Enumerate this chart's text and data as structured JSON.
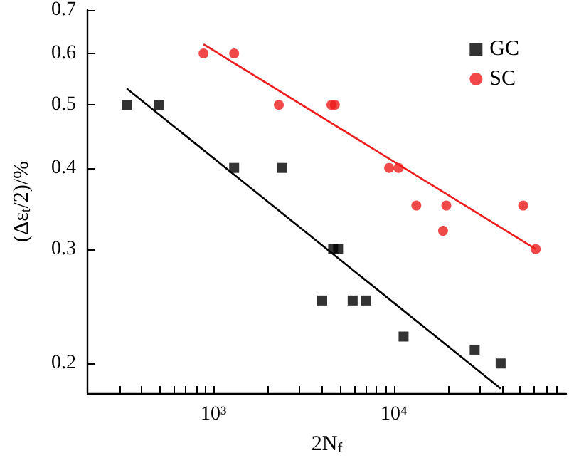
{
  "chart_data": {
    "type": "scatter",
    "xlabel": "2N$_{f}$",
    "ylabel": "(Δε$_{t}$/2)/%",
    "log": "xy",
    "grid": false,
    "legend": "top right",
    "xlim": [
      200,
      90000
    ],
    "ylim": [
      0.18,
      0.7
    ],
    "xticks": [
      {
        "value": 300,
        "label": null
      },
      {
        "value": 400,
        "label": null
      },
      {
        "value": 500,
        "label": null
      },
      {
        "value": 600,
        "label": null
      },
      {
        "value": 700,
        "label": null
      },
      {
        "value": 800,
        "label": null
      },
      {
        "value": 900,
        "label": null
      },
      {
        "value": 1000,
        "label": "10³"
      },
      {
        "value": 2000,
        "label": null
      },
      {
        "value": 3000,
        "label": null
      },
      {
        "value": 4000,
        "label": null
      },
      {
        "value": 5000,
        "label": null
      },
      {
        "value": 6000,
        "label": null
      },
      {
        "value": 7000,
        "label": null
      },
      {
        "value": 8000,
        "label": null
      },
      {
        "value": 9000,
        "label": null
      },
      {
        "value": 10000,
        "label": "10⁴"
      },
      {
        "value": 20000,
        "label": null
      },
      {
        "value": 30000,
        "label": null
      },
      {
        "value": 40000,
        "label": null
      },
      {
        "value": 50000,
        "label": null
      },
      {
        "value": 60000,
        "label": null
      },
      {
        "value": 70000,
        "label": null
      },
      {
        "value": 80000,
        "label": null
      }
    ],
    "yticks": [
      0.2,
      0.3,
      0.4,
      0.5,
      0.6,
      0.7
    ],
    "series": [
      {
        "name": "GC",
        "type": "scatter",
        "marker": "square",
        "color": "#000000",
        "x": [
          330,
          500,
          1300,
          2400,
          4600,
          4900,
          4000,
          5900,
          7000,
          11300,
          28000,
          39000
        ],
        "values": [
          0.5,
          0.5,
          0.4,
          0.4,
          0.3,
          0.3,
          0.25,
          0.25,
          0.25,
          0.22,
          0.21,
          0.2
        ]
      },
      {
        "name": "SC",
        "type": "scatter",
        "marker": "circle",
        "color": "#ee1c1c",
        "x": [
          880,
          1300,
          2300,
          4500,
          4700,
          9400,
          10600,
          13300,
          19500,
          18700,
          52000,
          61000
        ],
        "values": [
          0.6,
          0.6,
          0.5,
          0.5,
          0.5,
          0.4,
          0.4,
          0.35,
          0.35,
          0.32,
          0.35,
          0.3
        ]
      },
      {
        "type": "line",
        "marker": "none",
        "color": "#000000",
        "x": [
          330,
          39000
        ],
        "values": [
          0.53,
          0.183
        ]
      },
      {
        "type": "line",
        "marker": "none",
        "color": "#ee1c1c",
        "x": [
          880,
          61000
        ],
        "values": [
          0.62,
          0.3
        ]
      }
    ]
  }
}
